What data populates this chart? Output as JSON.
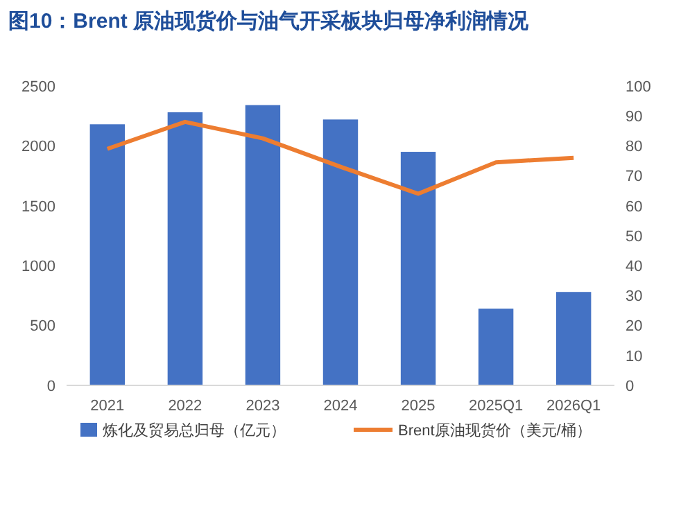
{
  "chart_data": {
    "type": "bar",
    "title": "图10：Brent 原油现货价与油气开采板块归母净利润情况",
    "categories": [
      "2021",
      "2022",
      "2023",
      "2024",
      "2025",
      "2025Q1",
      "2026Q1"
    ],
    "series": [
      {
        "name": "炼化及贸易总归母（亿元）",
        "color": "#4472c4",
        "values": [
          2180,
          2280,
          2340,
          2220,
          1950,
          640,
          780
        ]
      },
      {
        "name": "Brent原油现货价（美元/桶）",
        "type": "line",
        "axis": "y2",
        "color": "#ed7d31",
        "values": [
          79,
          88,
          82.5,
          73,
          64,
          74.5,
          76
        ]
      }
    ],
    "ylim": [
      0,
      2500
    ],
    "yticks": [
      0,
      500,
      1000,
      1500,
      2000,
      2500
    ],
    "y2lim": [
      0,
      100
    ],
    "y2ticks": [
      0,
      10,
      20,
      30,
      40,
      50,
      60,
      70,
      80,
      90,
      100
    ],
    "legend": "bottom",
    "marker": "none",
    "line_style": "solid"
  }
}
